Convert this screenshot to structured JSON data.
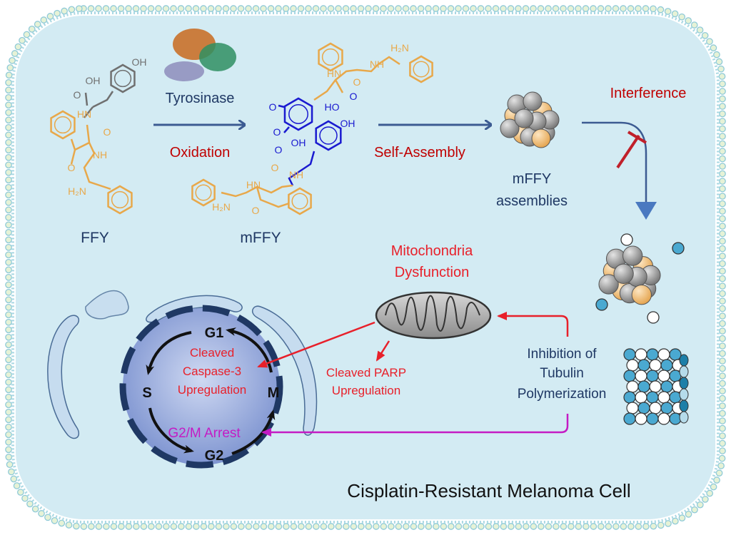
{
  "colors": {
    "cytoplasm": "#d3ebf3",
    "membrane": "#a9d8e3",
    "navy": "#1f3864",
    "dark_red": "#c00000",
    "red": "#e8202a",
    "magenta": "#c41bc4",
    "peptide_orange": "#e8a84a",
    "oxidized_blue": "#1a1ad0",
    "tyrosine_gray": "#707070",
    "arrow_blue": "#3c5b92"
  },
  "reaction": {
    "enzyme_label": "Tyrosinase",
    "oxidation_label": "Oxidation",
    "reactant_label": "FFY",
    "product_label": "mFFY",
    "self_assembly_label": "Self-Assembly",
    "assemblies_label": [
      "mFFY",
      "assemblies"
    ],
    "interference_label": "Interference"
  },
  "atoms": {
    "ffy": [
      "OH",
      "OH",
      "O",
      "HN",
      "O",
      "NH",
      "O",
      "H₂N"
    ],
    "mffy": [
      "O",
      "O",
      "HO",
      "O",
      "OH",
      "OH",
      "O",
      "NH",
      "O",
      "HN",
      "O",
      "H₂N",
      "HN",
      "O",
      "NH",
      "H₂N"
    ]
  },
  "effects": {
    "mitochondria": [
      "Mitochondria",
      "Dysfunction"
    ],
    "parp": [
      "Cleaved PARP",
      "Upregulation"
    ],
    "tubulin": [
      "Inhibition of",
      "Tubulin",
      "Polymerization"
    ],
    "caspase": [
      "Cleaved",
      "Caspase-3",
      "Upregulation"
    ],
    "arrest": "G2/M Arrest"
  },
  "cell_cycle": {
    "g1": "G1",
    "s": "S",
    "m": "M",
    "g2": "G2"
  },
  "cell_label": "Cisplatin-Resistant Melanoma Cell"
}
